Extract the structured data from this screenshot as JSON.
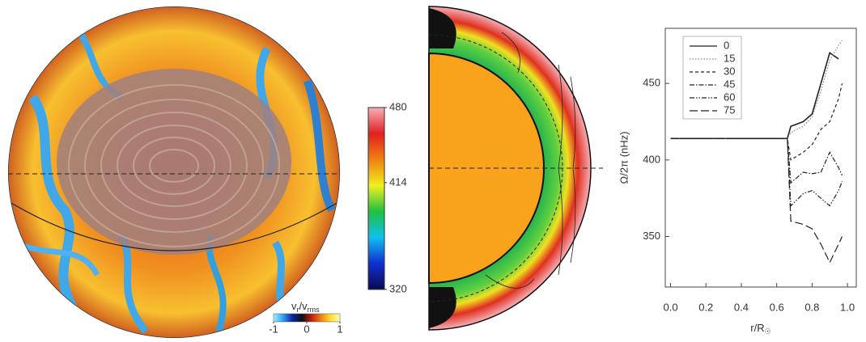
{
  "chart_data": [
    {
      "type": "line",
      "ylabel": "Ω/2π (nHz)",
      "xlabel_parts": [
        "r/R",
        "☉"
      ],
      "x": [
        0,
        0.2,
        0.4,
        0.6,
        0.66,
        0.68,
        0.75,
        0.8,
        0.85,
        0.9,
        0.95,
        0.97
      ],
      "xlim": [
        -0.03,
        1.05
      ],
      "ylim": [
        317,
        486
      ],
      "xticks": [
        {
          "value": 0,
          "label": "0.0"
        },
        0.2,
        0.4,
        0.6,
        0.8,
        {
          "value": 1,
          "label": "1.0"
        }
      ],
      "yticks": [
        350,
        400,
        450
      ],
      "legend": "upper left",
      "series": [
        {
          "name": "0",
          "color": "#222222",
          "style": "solid",
          "values": [
            414,
            414,
            414,
            414,
            414,
            422,
            425,
            430,
            450,
            470,
            466,
            null
          ]
        },
        {
          "name": "15",
          "color": "#888888",
          "style": "dotted",
          "values": [
            414,
            414,
            414,
            414,
            414,
            418,
            422,
            428,
            445,
            465,
            475,
            478
          ]
        },
        {
          "name": "30",
          "color": "#222222",
          "style": "dashed",
          "values": [
            414,
            414,
            414,
            414,
            414,
            400,
            405,
            410,
            420,
            425,
            440,
            450
          ]
        },
        {
          "name": "45",
          "color": "#222222",
          "style": "dashdot",
          "values": [
            414,
            414,
            414,
            414,
            414,
            385,
            392,
            391,
            392,
            405,
            395,
            390
          ]
        },
        {
          "name": "60",
          "color": "#222222",
          "style": "dashdotdot",
          "values": [
            414,
            414,
            414,
            414,
            414,
            370,
            378,
            380,
            375,
            370,
            380,
            386
          ]
        },
        {
          "name": "75",
          "color": "#222222",
          "style": "longdash",
          "values": [
            414,
            414,
            414,
            414,
            414,
            360,
            358,
            355,
            345,
            333,
            345,
            350
          ]
        }
      ]
    },
    {
      "type": "colorbar",
      "orientation": "vertical",
      "lim": [
        320,
        480
      ],
      "ticks": [
        320,
        414,
        480
      ],
      "colors": [
        "#0a0a50",
        "#1030d0",
        "#10c0f0",
        "#20c040",
        "#f0f020",
        "#f08010",
        "#e02020",
        "#f4b0b8"
      ]
    },
    {
      "type": "colorbar",
      "orientation": "horizontal",
      "label_parts": [
        "v",
        "r",
        "/v",
        "rms"
      ],
      "lim": [
        -1,
        1
      ],
      "ticks": [
        -1,
        0,
        1
      ],
      "colors": [
        "#a0f0ff",
        "#30a0f0",
        "#1020a0",
        "#101010",
        "#c02010",
        "#f08010",
        "#ffe030",
        "#fff8c0"
      ]
    }
  ]
}
